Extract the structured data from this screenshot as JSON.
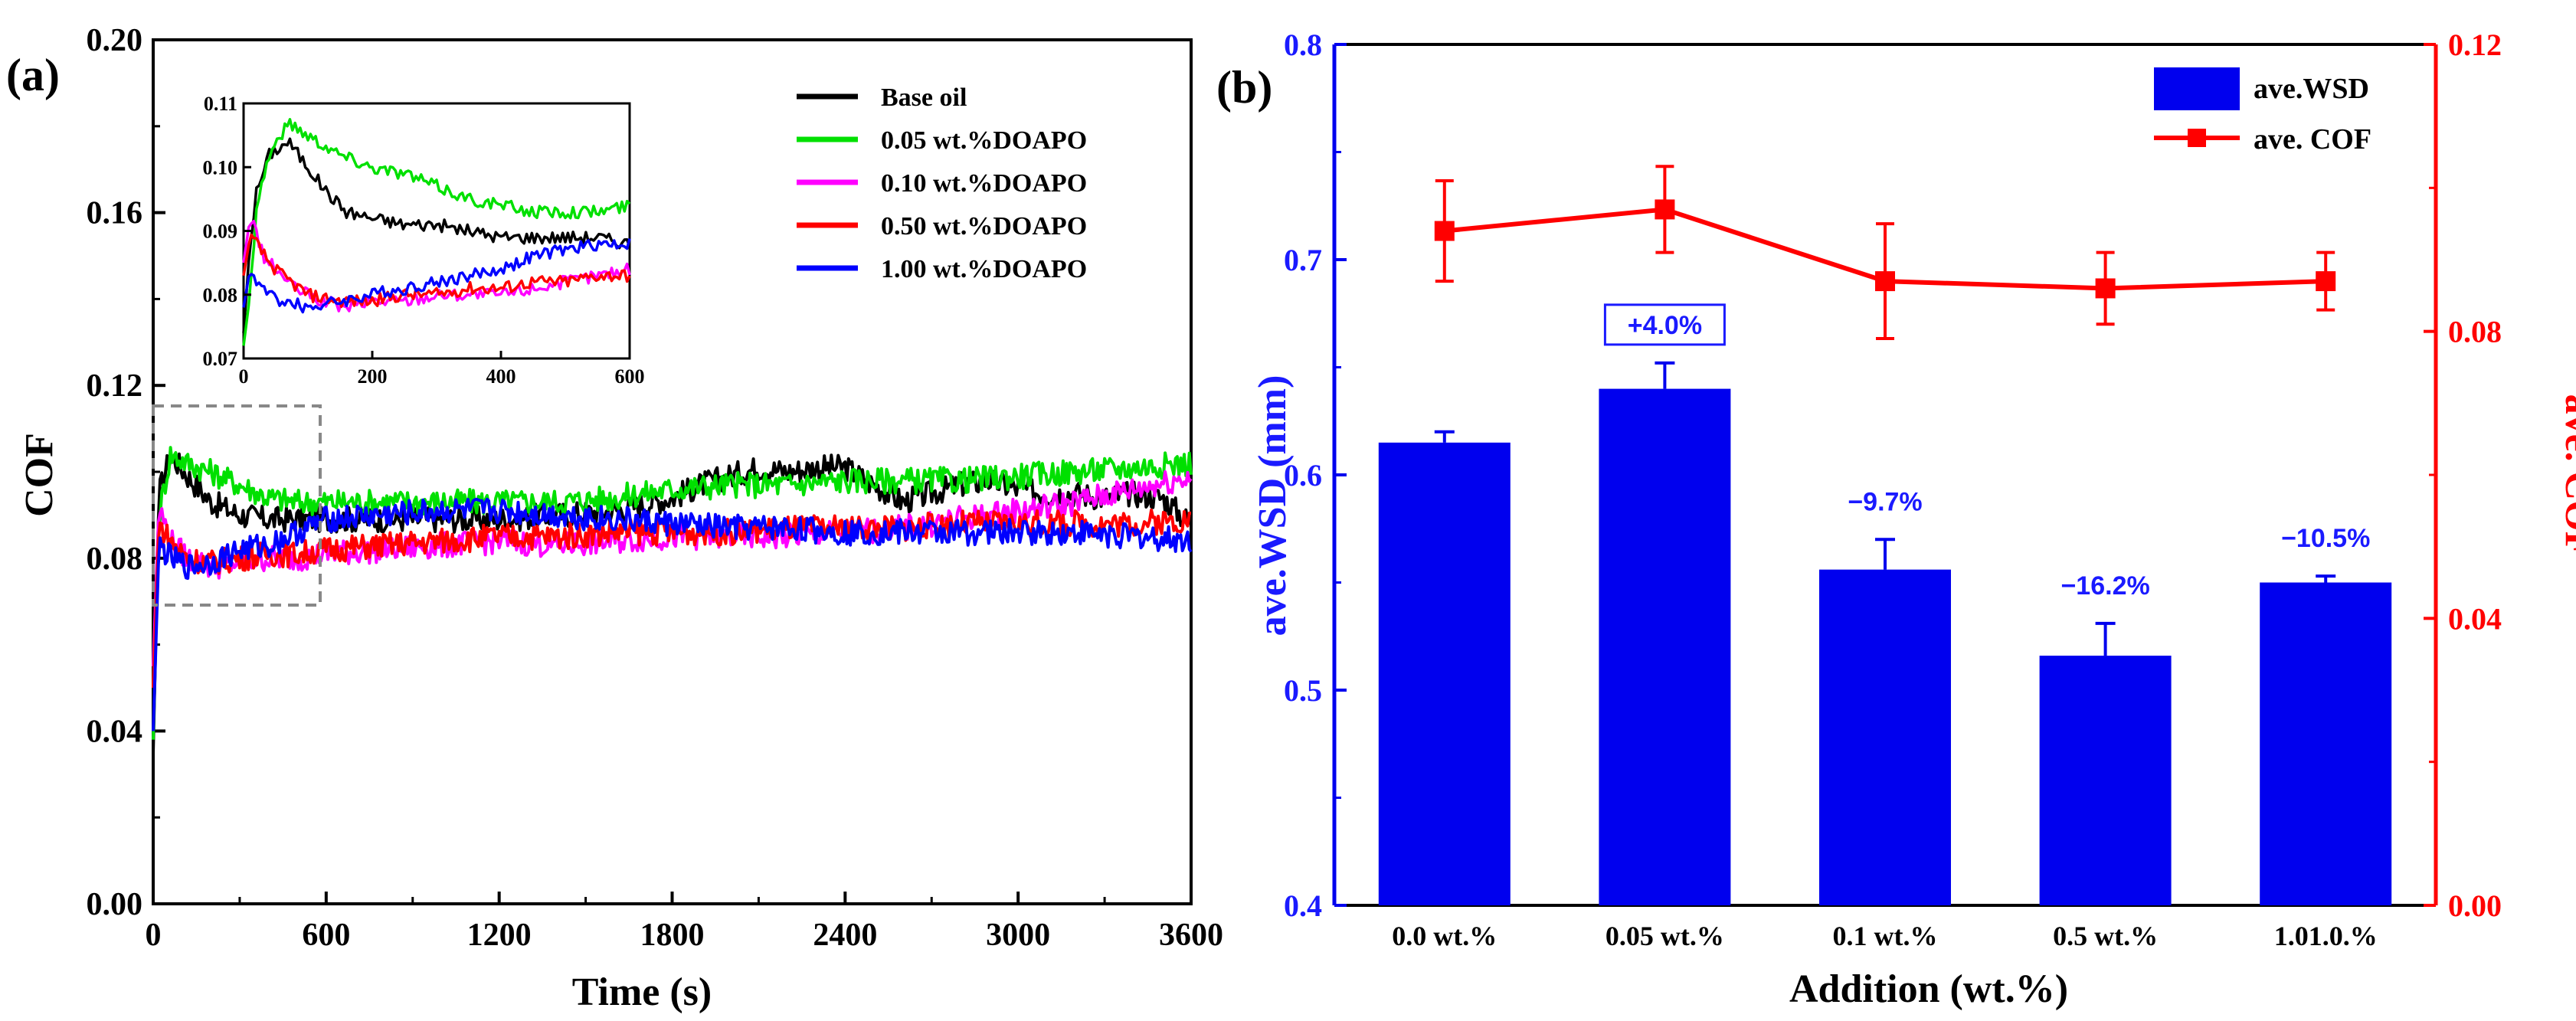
{
  "panel_a": {
    "label": "(a)",
    "chart_data": {
      "type": "line",
      "xlabel": "Time (s)",
      "ylabel": "COF",
      "xlim": [
        0,
        3600
      ],
      "ylim": [
        0,
        0.2
      ],
      "xticks": [
        "0",
        "600",
        "1200",
        "1800",
        "2400",
        "3000",
        "3600"
      ],
      "yticks": [
        "0.00",
        "0.04",
        "0.08",
        "0.12",
        "0.16",
        "0.20"
      ],
      "legend": "top-right",
      "series": [
        {
          "name": "Base oil",
          "color": "#000000",
          "x": [
            0,
            20,
            60,
            120,
            200,
            300,
            400,
            500,
            600,
            800,
            1000,
            1200,
            1400,
            1600,
            1800,
            1900,
            2000,
            2100,
            2200,
            2300,
            2400,
            2500,
            2600,
            2700,
            2800,
            2900,
            3000,
            3100,
            3200,
            3300,
            3400,
            3500,
            3600
          ],
          "y": [
            0.035,
            0.095,
            0.104,
            0.099,
            0.093,
            0.09,
            0.089,
            0.089,
            0.089,
            0.089,
            0.089,
            0.089,
            0.09,
            0.091,
            0.094,
            0.097,
            0.099,
            0.101,
            0.1,
            0.101,
            0.101,
            0.097,
            0.093,
            0.095,
            0.097,
            0.098,
            0.096,
            0.095,
            0.095,
            0.094,
            0.095,
            0.094,
            0.088
          ]
        },
        {
          "name": "0.05 wt.%DOAPO",
          "color": "#00e000",
          "x": [
            0,
            20,
            60,
            120,
            200,
            300,
            400,
            500,
            600,
            800,
            1000,
            1200,
            1400,
            1600,
            1800,
            2000,
            2200,
            2400,
            2600,
            2800,
            3000,
            3200,
            3400,
            3600
          ],
          "y": [
            0.038,
            0.09,
            0.104,
            0.102,
            0.1,
            0.097,
            0.094,
            0.093,
            0.093,
            0.093,
            0.093,
            0.093,
            0.093,
            0.094,
            0.096,
            0.097,
            0.097,
            0.098,
            0.098,
            0.098,
            0.099,
            0.1,
            0.101,
            0.102
          ]
        },
        {
          "name": "0.10 wt.%DOAPO",
          "color": "#ff00ff",
          "x": [
            0,
            20,
            60,
            120,
            200,
            300,
            400,
            500,
            600,
            800,
            1000,
            1200,
            1400,
            1600,
            1800,
            2000,
            2200,
            2400,
            2600,
            2800,
            3000,
            3200,
            3400,
            3600
          ],
          "y": [
            0.055,
            0.092,
            0.084,
            0.08,
            0.078,
            0.079,
            0.08,
            0.08,
            0.081,
            0.082,
            0.083,
            0.084,
            0.083,
            0.084,
            0.085,
            0.085,
            0.085,
            0.086,
            0.087,
            0.089,
            0.091,
            0.093,
            0.096,
            0.099
          ]
        },
        {
          "name": "0.50 wt.%DOAPO",
          "color": "#ff0000",
          "x": [
            0,
            20,
            60,
            120,
            200,
            300,
            400,
            500,
            600,
            800,
            1000,
            1200,
            1400,
            1600,
            1800,
            2000,
            2200,
            2400,
            2600,
            2800,
            3000,
            3200,
            3400,
            3600
          ],
          "y": [
            0.05,
            0.088,
            0.084,
            0.08,
            0.079,
            0.08,
            0.081,
            0.081,
            0.082,
            0.083,
            0.084,
            0.085,
            0.085,
            0.086,
            0.086,
            0.086,
            0.087,
            0.087,
            0.087,
            0.088,
            0.088,
            0.088,
            0.088,
            0.089
          ]
        },
        {
          "name": "1.00 wt.%DOAPO",
          "color": "#0000ff",
          "x": [
            0,
            20,
            60,
            120,
            200,
            300,
            400,
            500,
            600,
            800,
            1000,
            1200,
            1400,
            1600,
            1800,
            2000,
            2200,
            2400,
            2600,
            2800,
            3000,
            3200,
            3400,
            3600
          ],
          "y": [
            0.04,
            0.083,
            0.08,
            0.078,
            0.079,
            0.082,
            0.083,
            0.086,
            0.089,
            0.09,
            0.091,
            0.091,
            0.09,
            0.089,
            0.088,
            0.087,
            0.087,
            0.086,
            0.086,
            0.086,
            0.086,
            0.086,
            0.085,
            0.084
          ]
        }
      ],
      "inset": {
        "xlim": [
          0,
          600
        ],
        "ylim": [
          0.07,
          0.11
        ],
        "xticks": [
          "0",
          "200",
          "400",
          "600"
        ],
        "yticks": [
          "0.07",
          "0.08",
          "0.09",
          "0.10",
          "0.11"
        ],
        "series": [
          {
            "name": "Base oil",
            "color": "#000000",
            "x": [
              0,
              10,
              20,
              40,
              70,
              100,
              130,
              160,
              200,
              250,
              300,
              350,
              400,
              450,
              500,
              550,
              600
            ],
            "y": [
              0.074,
              0.088,
              0.096,
              0.102,
              0.104,
              0.1,
              0.096,
              0.093,
              0.092,
              0.091,
              0.091,
              0.09,
              0.089,
              0.089,
              0.089,
              0.089,
              0.088
            ]
          },
          {
            "name": "0.05 wt.%DOAPO",
            "color": "#00e000",
            "x": [
              0,
              10,
              20,
              40,
              70,
              100,
              150,
              200,
              250,
              300,
              350,
              400,
              450,
              500,
              550,
              600
            ],
            "y": [
              0.072,
              0.08,
              0.094,
              0.102,
              0.107,
              0.105,
              0.102,
              0.1,
              0.099,
              0.097,
              0.095,
              0.094,
              0.093,
              0.093,
              0.093,
              0.094
            ]
          },
          {
            "name": "0.10 wt.%DOAPO",
            "color": "#ff00ff",
            "x": [
              0,
              10,
              20,
              30,
              50,
              80,
              120,
              160,
              200,
              250,
              300,
              350,
              400,
              450,
              500,
              550,
              600
            ],
            "y": [
              0.085,
              0.092,
              0.09,
              0.086,
              0.084,
              0.081,
              0.079,
              0.078,
              0.079,
              0.079,
              0.08,
              0.08,
              0.08,
              0.081,
              0.082,
              0.083,
              0.084
            ]
          },
          {
            "name": "0.50 wt.%DOAPO",
            "color": "#ff0000",
            "x": [
              0,
              10,
              20,
              40,
              60,
              100,
              150,
              200,
              250,
              300,
              350,
              400,
              450,
              500,
              550,
              600
            ],
            "y": [
              0.083,
              0.089,
              0.088,
              0.085,
              0.083,
              0.08,
              0.079,
              0.079,
              0.08,
              0.08,
              0.081,
              0.081,
              0.082,
              0.082,
              0.083,
              0.083
            ]
          },
          {
            "name": "1.00 wt.%DOAPO",
            "color": "#0000ff",
            "x": [
              0,
              10,
              20,
              40,
              60,
              100,
              150,
              200,
              250,
              300,
              350,
              400,
              450,
              500,
              550,
              600
            ],
            "y": [
              0.078,
              0.084,
              0.082,
              0.08,
              0.079,
              0.078,
              0.079,
              0.08,
              0.081,
              0.082,
              0.083,
              0.084,
              0.086,
              0.087,
              0.088,
              0.088
            ]
          }
        ]
      }
    }
  },
  "panel_b": {
    "label": "(b)",
    "chart_data": {
      "type": "bar",
      "xlabel": "Addition (wt.%)",
      "ylabel_left": "ave.WSD (mm)",
      "ylabel_right": "ave. COF",
      "categories": [
        "0.0 wt.%",
        "0.05 wt.%",
        "0.1 wt.%",
        "0.5 wt.%",
        "1.01.0.%"
      ],
      "ylim_left": [
        0.4,
        0.8
      ],
      "ylim_right": [
        0,
        0.12
      ],
      "yticks_left": [
        "0.4",
        "0.5",
        "0.6",
        "0.7",
        "0.8"
      ],
      "yticks_right": [
        "0.00",
        "0.04",
        "0.08",
        "0.12"
      ],
      "legend": "top-right",
      "bar_color": "#0000ee",
      "line_color": "#ff0000",
      "series": [
        {
          "name": "ave.WSD",
          "kind": "bar",
          "values": [
            0.615,
            0.64,
            0.556,
            0.516,
            0.55
          ],
          "errors": [
            0.005,
            0.012,
            0.014,
            0.015,
            0.003
          ]
        },
        {
          "name": "ave. COF",
          "kind": "line",
          "values": [
            0.094,
            0.097,
            0.087,
            0.086,
            0.087
          ],
          "errors": [
            0.007,
            0.006,
            0.008,
            0.005,
            0.004
          ]
        }
      ],
      "annotations": [
        "",
        "+4.0%",
        "−9.7%",
        "−16.2%",
        "−10.5%"
      ]
    }
  }
}
